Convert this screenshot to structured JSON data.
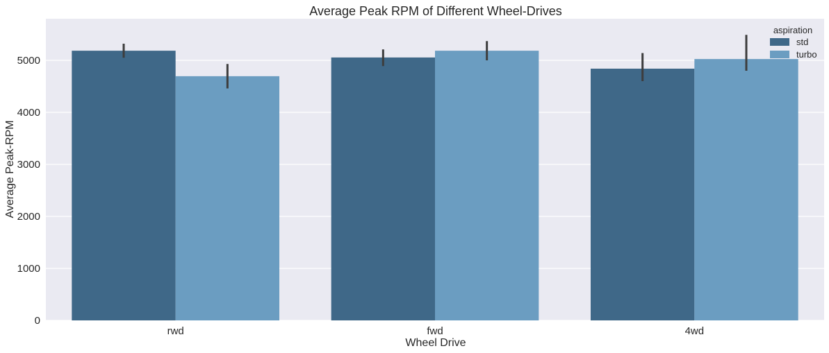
{
  "chart_data": {
    "type": "bar",
    "title": "Average Peak RPM of Different Wheel-Drives",
    "xlabel": "Wheel Drive",
    "ylabel": "Average Peak-RPM",
    "categories": [
      "rwd",
      "fwd",
      "4wd"
    ],
    "ylim": [
      0,
      5800
    ],
    "yticks": [
      0,
      1000,
      2000,
      3000,
      4000,
      5000
    ],
    "grid": true,
    "legend": {
      "title": "aspiration",
      "position": "top-right"
    },
    "series": [
      {
        "name": "std",
        "color": "#3f6888",
        "values": [
          5185,
          5055,
          4840
        ],
        "ci": [
          [
            5050,
            5320
          ],
          [
            4890,
            5210
          ],
          [
            4600,
            5140
          ]
        ]
      },
      {
        "name": "turbo",
        "color": "#6b9dc1",
        "values": [
          4695,
          5185,
          5025
        ],
        "ci": [
          [
            4460,
            4930
          ],
          [
            5000,
            5370
          ],
          [
            4800,
            5490
          ]
        ]
      }
    ]
  }
}
